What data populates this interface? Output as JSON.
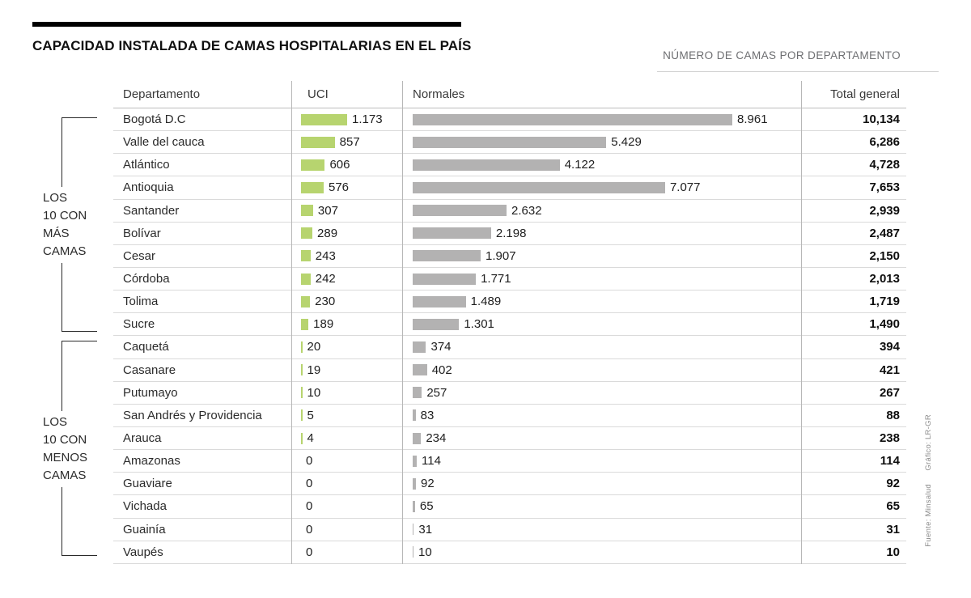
{
  "header": {
    "title": "CAPACIDAD INSTALADA DE CAMAS HOSPITALARIAS EN EL PAÍS",
    "subtitle": "NÚMERO DE CAMAS POR DEPARTAMENTO"
  },
  "table_headers": {
    "departamento": "Departamento",
    "uci": "UCI",
    "normales": "Normales",
    "total": "Total general"
  },
  "group_labels": {
    "top": [
      "LOS",
      "10 CON",
      "MÁS",
      "CAMAS"
    ],
    "bottom": [
      "LOS",
      "10 CON",
      "MENOS",
      "CAMAS"
    ]
  },
  "credits": {
    "grafico": "Gráfico: LR-GR",
    "fuente": "Fuente: Minsalud"
  },
  "colors": {
    "uci_bar": "#b7d46f",
    "normales_bar": "#b3b2b2"
  },
  "chart_data": {
    "type": "bar",
    "title": "Capacidad instalada de camas hospitalarias en el país",
    "subtitle": "Número de camas por departamento",
    "columns": [
      "Departamento",
      "UCI",
      "Normales",
      "Total general"
    ],
    "uci_axis_max": 1173,
    "normales_axis_max": 8961,
    "groups": [
      {
        "label": "Los 10 con más camas",
        "rows": "1-10"
      },
      {
        "label": "Los 10 con menos camas",
        "rows": "11-20"
      }
    ],
    "rows": [
      {
        "departamento": "Bogotá D.C",
        "uci": 1173,
        "uci_label": "1.173",
        "normales": 8961,
        "normales_label": "8.961",
        "total": 10134,
        "total_label": "10,134"
      },
      {
        "departamento": "Valle del cauca",
        "uci": 857,
        "uci_label": "857",
        "normales": 5429,
        "normales_label": "5.429",
        "total": 6286,
        "total_label": "6,286"
      },
      {
        "departamento": "Atlántico",
        "uci": 606,
        "uci_label": "606",
        "normales": 4122,
        "normales_label": "4.122",
        "total": 4728,
        "total_label": "4,728"
      },
      {
        "departamento": "Antioquia",
        "uci": 576,
        "uci_label": "576",
        "normales": 7077,
        "normales_label": "7.077",
        "total": 7653,
        "total_label": "7,653"
      },
      {
        "departamento": "Santander",
        "uci": 307,
        "uci_label": "307",
        "normales": 2632,
        "normales_label": "2.632",
        "total": 2939,
        "total_label": "2,939"
      },
      {
        "departamento": "Bolívar",
        "uci": 289,
        "uci_label": "289",
        "normales": 2198,
        "normales_label": "2.198",
        "total": 2487,
        "total_label": "2,487"
      },
      {
        "departamento": "Cesar",
        "uci": 243,
        "uci_label": "243",
        "normales": 1907,
        "normales_label": "1.907",
        "total": 2150,
        "total_label": "2,150"
      },
      {
        "departamento": "Córdoba",
        "uci": 242,
        "uci_label": "242",
        "normales": 1771,
        "normales_label": "1.771",
        "total": 2013,
        "total_label": "2,013"
      },
      {
        "departamento": "Tolima",
        "uci": 230,
        "uci_label": "230",
        "normales": 1489,
        "normales_label": "1.489",
        "total": 1719,
        "total_label": "1,719"
      },
      {
        "departamento": "Sucre",
        "uci": 189,
        "uci_label": "189",
        "normales": 1301,
        "normales_label": "1.301",
        "total": 1490,
        "total_label": "1,490"
      },
      {
        "departamento": "Caquetá",
        "uci": 20,
        "uci_label": "20",
        "normales": 374,
        "normales_label": "374",
        "total": 394,
        "total_label": "394"
      },
      {
        "departamento": "Casanare",
        "uci": 19,
        "uci_label": "19",
        "normales": 402,
        "normales_label": "402",
        "total": 421,
        "total_label": "421"
      },
      {
        "departamento": "Putumayo",
        "uci": 10,
        "uci_label": "10",
        "normales": 257,
        "normales_label": "257",
        "total": 267,
        "total_label": "267"
      },
      {
        "departamento": "San Andrés y Providencia",
        "uci": 5,
        "uci_label": "5",
        "normales": 83,
        "normales_label": "83",
        "total": 88,
        "total_label": "88"
      },
      {
        "departamento": "Arauca",
        "uci": 4,
        "uci_label": "4",
        "normales": 234,
        "normales_label": "234",
        "total": 238,
        "total_label": "238"
      },
      {
        "departamento": "Amazonas",
        "uci": 0,
        "uci_label": "0",
        "normales": 114,
        "normales_label": "114",
        "total": 114,
        "total_label": "114"
      },
      {
        "departamento": "Guaviare",
        "uci": 0,
        "uci_label": "0",
        "normales": 92,
        "normales_label": "92",
        "total": 92,
        "total_label": "92"
      },
      {
        "departamento": "Vichada",
        "uci": 0,
        "uci_label": "0",
        "normales": 65,
        "normales_label": "65",
        "total": 65,
        "total_label": "65"
      },
      {
        "departamento": "Guainía",
        "uci": 0,
        "uci_label": "0",
        "normales": 31,
        "normales_label": "31",
        "total": 31,
        "total_label": "31"
      },
      {
        "departamento": "Vaupés",
        "uci": 0,
        "uci_label": "0",
        "normales": 10,
        "normales_label": "10",
        "total": 10,
        "total_label": "10"
      }
    ]
  }
}
